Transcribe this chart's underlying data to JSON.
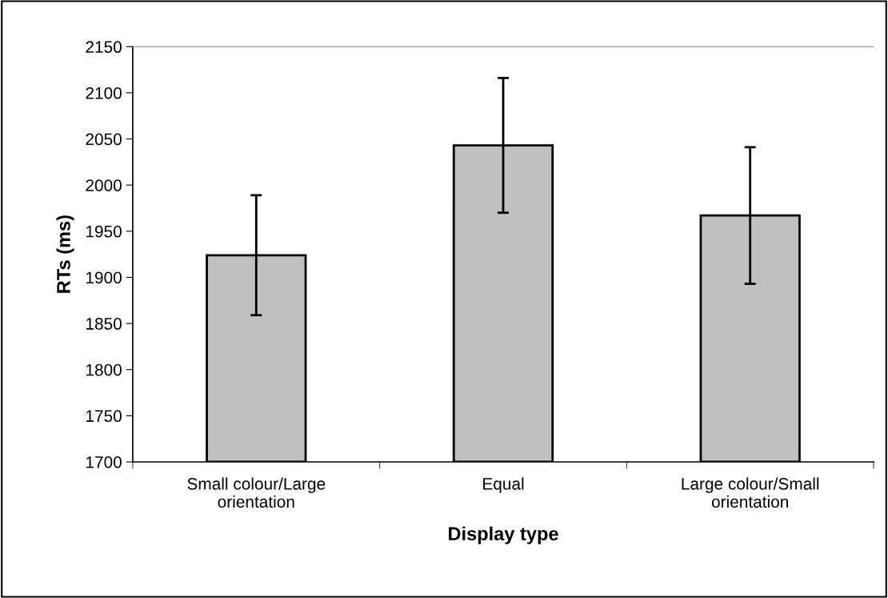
{
  "chart_data": {
    "type": "bar",
    "categories": [
      "Small colour/Large\norientation",
      "Equal",
      "Large colour/Small\norientation"
    ],
    "values": [
      1924,
      2043,
      1967
    ],
    "errors": [
      65,
      73,
      74
    ],
    "color": "#c0c0c0",
    "xlabel": "Display type",
    "ylabel": "RTs (ms)",
    "ylim": [
      1700,
      2150
    ],
    "yticks": [
      1700,
      1750,
      1800,
      1850,
      1900,
      1950,
      2000,
      2050,
      2100,
      2150
    ],
    "grid": false,
    "legend": false
  }
}
